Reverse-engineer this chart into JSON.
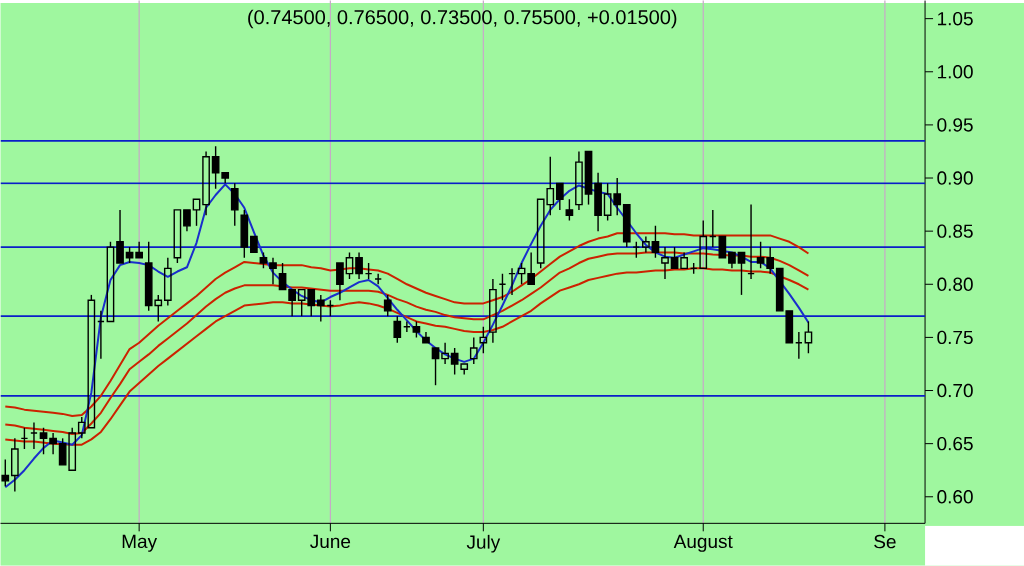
{
  "chart_data": {
    "type": "candlestick",
    "title": "(0.74500, 0.76500, 0.73500, 0.75500, +0.01500)",
    "categories": [
      null,
      null,
      null,
      null,
      null,
      null,
      null,
      null,
      null,
      null,
      null,
      null,
      null,
      null,
      "May",
      null,
      null,
      null,
      null,
      null,
      null,
      null,
      null,
      null,
      null,
      null,
      null,
      null,
      null,
      null,
      null,
      null,
      null,
      null,
      "June",
      null,
      null,
      null,
      null,
      null,
      null,
      null,
      null,
      null,
      null,
      null,
      null,
      null,
      null,
      null,
      "July",
      null,
      null,
      null,
      null,
      null,
      null,
      null,
      null,
      null,
      null,
      null,
      null,
      null,
      null,
      null,
      null,
      null,
      null,
      null,
      null,
      null,
      null,
      "August",
      null,
      null,
      null,
      null,
      null,
      null,
      null,
      null,
      null,
      null,
      null,
      null,
      null,
      null,
      null,
      null,
      null,
      null,
      "Se"
    ],
    "ohlc": [
      [
        0.62,
        0.635,
        0.61,
        0.615
      ],
      [
        0.62,
        0.655,
        0.605,
        0.645
      ],
      [
        0.655,
        0.665,
        0.645,
        0.655
      ],
      [
        0.66,
        0.67,
        0.645,
        0.66
      ],
      [
        0.66,
        0.665,
        0.64,
        0.655
      ],
      [
        0.655,
        0.66,
        0.64,
        0.65
      ],
      [
        0.65,
        0.655,
        0.63,
        0.63
      ],
      [
        0.625,
        0.665,
        0.625,
        0.66
      ],
      [
        0.66,
        0.675,
        0.655,
        0.67
      ],
      [
        0.665,
        0.79,
        0.665,
        0.785
      ],
      [
        0.765,
        0.775,
        0.73,
        0.765
      ],
      [
        0.765,
        0.84,
        0.765,
        0.835
      ],
      [
        0.84,
        0.87,
        0.82,
        0.82
      ],
      [
        0.83,
        0.835,
        0.82,
        0.825
      ],
      [
        0.83,
        0.84,
        0.825,
        0.825
      ],
      [
        0.82,
        0.84,
        0.775,
        0.78
      ],
      [
        0.78,
        0.79,
        0.765,
        0.785
      ],
      [
        0.785,
        0.825,
        0.78,
        0.815
      ],
      [
        0.825,
        0.87,
        0.82,
        0.87
      ],
      [
        0.87,
        0.87,
        0.85,
        0.855
      ],
      [
        0.87,
        0.88,
        0.855,
        0.88
      ],
      [
        0.875,
        0.925,
        0.865,
        0.92
      ],
      [
        0.92,
        0.93,
        0.89,
        0.905
      ],
      [
        0.905,
        0.905,
        0.895,
        0.9
      ],
      [
        0.89,
        0.895,
        0.855,
        0.87
      ],
      [
        0.865,
        0.87,
        0.825,
        0.835
      ],
      [
        0.845,
        0.845,
        0.83,
        0.83
      ],
      [
        0.825,
        0.83,
        0.815,
        0.82
      ],
      [
        0.82,
        0.825,
        0.8,
        0.815
      ],
      [
        0.81,
        0.82,
        0.795,
        0.795
      ],
      [
        0.795,
        0.795,
        0.77,
        0.785
      ],
      [
        0.785,
        0.795,
        0.77,
        0.795
      ],
      [
        0.795,
        0.795,
        0.77,
        0.78
      ],
      [
        0.785,
        0.79,
        0.765,
        0.78
      ],
      [
        0.78,
        0.785,
        0.77,
        0.78
      ],
      [
        0.82,
        0.82,
        0.785,
        0.8
      ],
      [
        0.81,
        0.83,
        0.805,
        0.825
      ],
      [
        0.825,
        0.83,
        0.805,
        0.81
      ],
      [
        0.81,
        0.82,
        0.805,
        0.81
      ],
      [
        0.805,
        0.81,
        0.8,
        0.805
      ],
      [
        0.785,
        0.79,
        0.77,
        0.775
      ],
      [
        0.765,
        0.77,
        0.745,
        0.75
      ],
      [
        0.76,
        0.765,
        0.755,
        0.76
      ],
      [
        0.76,
        0.765,
        0.75,
        0.755
      ],
      [
        0.75,
        0.755,
        0.745,
        0.745
      ],
      [
        0.74,
        0.74,
        0.705,
        0.73
      ],
      [
        0.73,
        0.745,
        0.725,
        0.735
      ],
      [
        0.735,
        0.74,
        0.715,
        0.725
      ],
      [
        0.72,
        0.725,
        0.715,
        0.725
      ],
      [
        0.73,
        0.75,
        0.725,
        0.74
      ],
      [
        0.745,
        0.76,
        0.735,
        0.75
      ],
      [
        0.755,
        0.805,
        0.745,
        0.795
      ],
      [
        0.8,
        0.81,
        0.785,
        0.8
      ],
      [
        0.81,
        0.815,
        0.79,
        0.81
      ],
      [
        0.81,
        0.82,
        0.8,
        0.815
      ],
      [
        0.81,
        0.83,
        0.8,
        0.8
      ],
      [
        0.82,
        0.88,
        0.815,
        0.88
      ],
      [
        0.875,
        0.92,
        0.865,
        0.89
      ],
      [
        0.895,
        0.895,
        0.87,
        0.88
      ],
      [
        0.87,
        0.88,
        0.86,
        0.865
      ],
      [
        0.875,
        0.925,
        0.87,
        0.915
      ],
      [
        0.925,
        0.925,
        0.875,
        0.885
      ],
      [
        0.895,
        0.905,
        0.85,
        0.865
      ],
      [
        0.865,
        0.895,
        0.86,
        0.885
      ],
      [
        0.885,
        0.9,
        0.865,
        0.875
      ],
      [
        0.875,
        0.875,
        0.835,
        0.84
      ],
      [
        0.835,
        0.84,
        0.825,
        0.835
      ],
      [
        0.835,
        0.845,
        0.83,
        0.84
      ],
      [
        0.84,
        0.855,
        0.825,
        0.83
      ],
      [
        0.82,
        0.835,
        0.805,
        0.825
      ],
      [
        0.825,
        0.835,
        0.815,
        0.815
      ],
      [
        0.815,
        0.83,
        0.815,
        0.825
      ],
      [
        0.815,
        0.82,
        0.81,
        0.815
      ],
      [
        0.815,
        0.86,
        0.815,
        0.845
      ],
      [
        0.845,
        0.87,
        0.835,
        0.845
      ],
      [
        0.845,
        0.845,
        0.825,
        0.825
      ],
      [
        0.83,
        0.83,
        0.815,
        0.82
      ],
      [
        0.83,
        0.83,
        0.79,
        0.82
      ],
      [
        0.81,
        0.875,
        0.805,
        0.81
      ],
      [
        0.825,
        0.84,
        0.815,
        0.82
      ],
      [
        0.825,
        0.835,
        0.81,
        0.815
      ],
      [
        0.815,
        0.815,
        0.775,
        0.775
      ],
      [
        0.775,
        0.775,
        0.745,
        0.745
      ],
      [
        0.745,
        0.755,
        0.73,
        0.745
      ],
      [
        0.745,
        0.765,
        0.735,
        0.755
      ],
      null,
      null,
      null,
      null,
      null,
      null,
      null,
      null
    ],
    "series": [
      {
        "type": "line",
        "color": "#cc2200",
        "values": [
          0.685,
          0.684,
          0.682,
          0.681,
          0.68,
          0.679,
          0.678,
          0.676,
          0.677,
          0.685,
          0.695,
          0.709,
          0.724,
          0.739,
          0.745,
          0.753,
          0.761,
          0.768,
          0.775,
          0.782,
          0.789,
          0.797,
          0.805,
          0.811,
          0.816,
          0.821,
          0.82,
          0.819,
          0.818,
          0.818,
          0.818,
          0.818,
          0.816,
          0.815,
          0.813,
          0.814,
          0.815,
          0.815,
          0.814,
          0.813,
          0.81,
          0.805,
          0.8,
          0.796,
          0.792,
          0.789,
          0.786,
          0.783,
          0.782,
          0.782,
          0.782,
          0.785,
          0.788,
          0.793,
          0.799,
          0.805,
          0.812,
          0.819,
          0.826,
          0.831,
          0.836,
          0.84,
          0.843,
          0.845,
          0.848,
          0.848,
          0.848,
          0.848,
          0.848,
          0.848,
          0.847,
          0.847,
          0.846,
          0.846,
          0.846,
          0.846,
          0.846,
          0.846,
          0.846,
          0.846,
          0.846,
          0.843,
          0.84,
          0.835,
          0.829,
          null,
          null,
          null,
          null,
          null,
          null,
          null,
          null
        ]
      },
      {
        "type": "line",
        "color": "#cc2200",
        "values": [
          0.668,
          0.667,
          0.665,
          0.664,
          0.663,
          0.662,
          0.661,
          0.659,
          0.66,
          0.669,
          0.679,
          0.693,
          0.706,
          0.72,
          0.727,
          0.734,
          0.742,
          0.749,
          0.756,
          0.763,
          0.771,
          0.779,
          0.786,
          0.792,
          0.796,
          0.799,
          0.799,
          0.799,
          0.799,
          0.798,
          0.797,
          0.797,
          0.796,
          0.795,
          0.794,
          0.794,
          0.794,
          0.794,
          0.794,
          0.793,
          0.79,
          0.786,
          0.783,
          0.779,
          0.776,
          0.774,
          0.771,
          0.769,
          0.768,
          0.767,
          0.767,
          0.771,
          0.775,
          0.78,
          0.785,
          0.791,
          0.797,
          0.804,
          0.811,
          0.815,
          0.82,
          0.824,
          0.826,
          0.828,
          0.829,
          0.829,
          0.829,
          0.83,
          0.83,
          0.83,
          0.83,
          0.829,
          0.829,
          0.829,
          0.828,
          null,
          0.827,
          0.827,
          0.826,
          0.826,
          0.825,
          0.822,
          0.818,
          0.813,
          0.808,
          null,
          null,
          null,
          null,
          null,
          null,
          null,
          null
        ]
      },
      {
        "type": "line",
        "color": "#cc2200",
        "values": [
          0.654,
          0.653,
          0.652,
          0.652,
          0.651,
          0.65,
          null,
          0.649,
          0.649,
          0.654,
          0.661,
          0.673,
          0.686,
          0.699,
          0.707,
          0.715,
          0.723,
          0.73,
          0.737,
          0.744,
          0.751,
          0.758,
          0.765,
          0.77,
          0.775,
          0.78,
          0.781,
          0.782,
          0.783,
          0.783,
          0.782,
          0.782,
          0.781,
          0.78,
          0.779,
          0.78,
          0.782,
          0.783,
          0.782,
          0.78,
          0.777,
          0.773,
          0.769,
          0.765,
          0.763,
          0.761,
          0.76,
          0.758,
          0.756,
          0.755,
          0.755,
          0.757,
          0.76,
          0.765,
          0.77,
          0.775,
          0.782,
          0.788,
          0.794,
          0.797,
          0.8,
          0.804,
          0.806,
          0.808,
          0.81,
          0.811,
          0.811,
          0.812,
          0.813,
          0.813,
          0.814,
          0.814,
          0.815,
          0.815,
          0.814,
          0.814,
          0.813,
          0.813,
          0.812,
          0.812,
          0.811,
          null,
          0.804,
          0.8,
          0.795,
          null,
          null,
          null,
          null,
          null,
          null,
          null,
          null
        ]
      },
      {
        "type": "line",
        "color": "#1a2ecc",
        "values": [
          0.609,
          0.616,
          0.625,
          0.636,
          0.646,
          0.653,
          0.651,
          0.649,
          0.658,
          0.698,
          0.769,
          0.804,
          0.818,
          0.821,
          0.82,
          0.818,
          0.812,
          0.807,
          0.812,
          0.816,
          0.839,
          0.872,
          0.884,
          0.894,
          0.885,
          0.872,
          0.849,
          0.827,
          0.811,
          0.802,
          0.795,
          0.789,
          0.785,
          0.783,
          0.788,
          0.792,
          0.797,
          0.802,
          0.804,
          0.798,
          0.787,
          0.776,
          0.766,
          0.756,
          0.747,
          0.74,
          0.734,
          0.73,
          0.727,
          0.73,
          0.745,
          0.762,
          0.78,
          0.799,
          0.82,
          0.838,
          0.855,
          0.87,
          0.88,
          0.888,
          0.893,
          null,
          0.887,
          0.885,
          0.872,
          0.86,
          0.848,
          0.837,
          0.83,
          0.826,
          0.825,
          0.828,
          0.831,
          0.834,
          0.833,
          null,
          0.83,
          0.826,
          0.821,
          0.821,
          0.815,
          null,
          0.791,
          0.778,
          0.764,
          null,
          null,
          null,
          null,
          null,
          null,
          null,
          null
        ]
      }
    ],
    "ylim": [
      0.575,
      1.067
    ],
    "yticks": [
      {
        "value": 0.6,
        "label": "0.60"
      },
      {
        "value": 0.65,
        "label": "0.65"
      },
      {
        "value": 0.7,
        "label": "0.70"
      },
      {
        "value": 0.75,
        "label": "0.75"
      },
      {
        "value": 0.8,
        "label": "0.80"
      },
      {
        "value": 0.85,
        "label": "0.85"
      },
      {
        "value": 0.9,
        "label": "0.90"
      },
      {
        "value": 0.95,
        "label": "0.95"
      },
      {
        "value": 1.0,
        "label": "1.00"
      },
      {
        "value": 1.05,
        "label": "1.05"
      }
    ],
    "grid": "x",
    "ref_lines": [
      {
        "axis": "y",
        "value": 0.935,
        "color": "#0a1ec8"
      },
      {
        "axis": "y",
        "value": 0.895,
        "color": "#0a1ec8"
      },
      {
        "axis": "y",
        "value": 0.835,
        "color": "#0a1ec8"
      },
      {
        "axis": "y",
        "value": 0.77,
        "color": "#0a1ec8"
      },
      {
        "axis": "y",
        "value": 0.695,
        "color": "#0a1ec8"
      }
    ]
  }
}
